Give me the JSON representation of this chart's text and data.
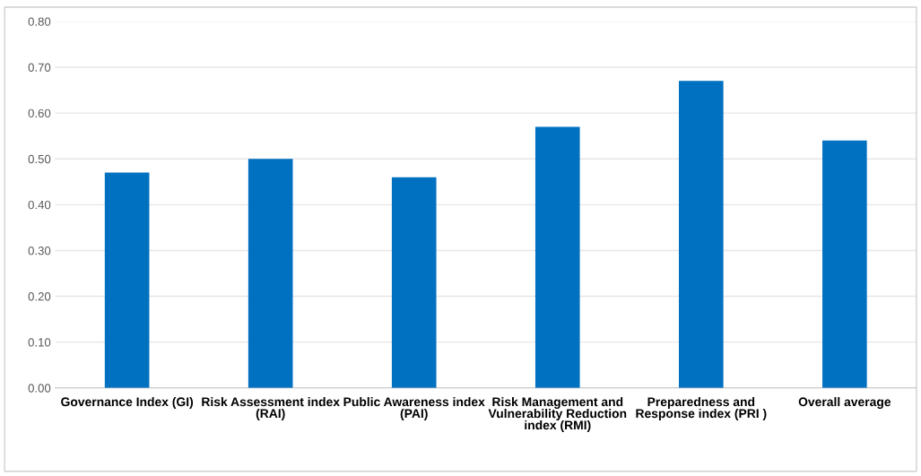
{
  "chart_data": {
    "type": "bar",
    "categories": [
      "Governance Index (GI)",
      "Risk Assessment index (RAI)",
      "Public Awareness index (PAI)",
      "Risk Management and Vulnerability Reduction index (RMI)",
      "Preparedness and Response index (PRI )",
      "Overall average"
    ],
    "values": [
      0.47,
      0.5,
      0.46,
      0.57,
      0.67,
      0.54
    ],
    "color": "#0070c0",
    "ylim": [
      0,
      0.8
    ],
    "yticks": [
      {
        "value": 0,
        "label": "0.00"
      },
      {
        "value": 0.1,
        "label": "0.10"
      },
      {
        "value": 0.2,
        "label": "0.20"
      },
      {
        "value": 0.3,
        "label": "0.30"
      },
      {
        "value": 0.4,
        "label": "0.40"
      },
      {
        "value": 0.5,
        "label": "0.50"
      },
      {
        "value": 0.6,
        "label": "0.60"
      },
      {
        "value": 0.7,
        "label": "0.70"
      },
      {
        "value": 0.8,
        "label": "0.80"
      }
    ],
    "grid": "y"
  }
}
